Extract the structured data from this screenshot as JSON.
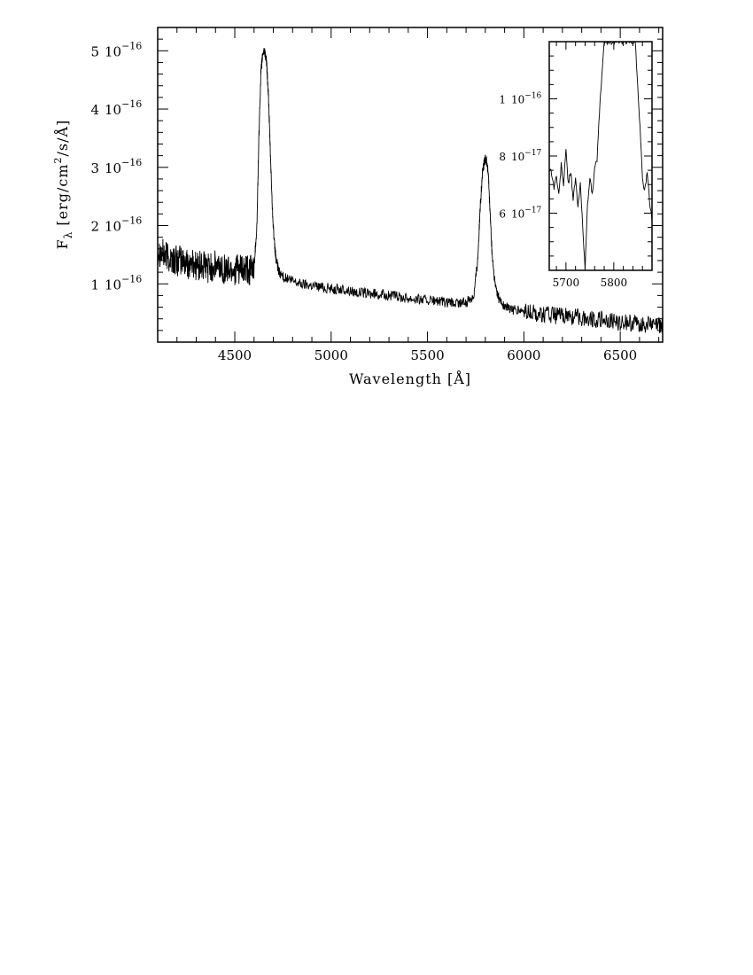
{
  "chart_data": [
    {
      "type": "line",
      "title": "",
      "xlabel": "Wavelength [Å]",
      "ylabel": "Fλ [erg/cm²/s/Å]",
      "ylabel_parts": {
        "symbol": "F",
        "sub": "λ",
        "unit_prefix": "[erg/cm",
        "sup": "2",
        "unit_suffix": "/s/Å]"
      },
      "xlim": [
        4100,
        6720
      ],
      "ylim": [
        0,
        5.4e-16
      ],
      "x_ticks": [
        {
          "value": 4500,
          "label": "4500"
        },
        {
          "value": 5000,
          "label": "5000"
        },
        {
          "value": 5500,
          "label": "5500"
        },
        {
          "value": 6000,
          "label": "6000"
        },
        {
          "value": 6500,
          "label": "6500"
        }
      ],
      "y_ticks": [
        {
          "value": 1e-16,
          "mantissa": "1",
          "base": "10",
          "exponent": "−16"
        },
        {
          "value": 2e-16,
          "mantissa": "2",
          "base": "10",
          "exponent": "−16"
        },
        {
          "value": 3e-16,
          "mantissa": "3",
          "base": "10",
          "exponent": "−16"
        },
        {
          "value": 4e-16,
          "mantissa": "4",
          "base": "10",
          "exponent": "−16"
        },
        {
          "value": 5e-16,
          "mantissa": "5",
          "base": "10",
          "exponent": "−16"
        }
      ],
      "grid": false,
      "legend": "none",
      "line_color": "#000000",
      "series": [
        {
          "x": [
            4100,
            4130,
            4160,
            4190,
            4220,
            4250,
            4280,
            4310,
            4340,
            4370,
            4400,
            4430,
            4460,
            4490,
            4520,
            4550,
            4580,
            4600,
            4615,
            4625,
            4635,
            4645,
            4655,
            4665,
            4675,
            4685,
            4695,
            4705,
            4715,
            4730,
            4760,
            4800,
            4850,
            4900,
            4950,
            5000,
            5050,
            5100,
            5150,
            5200,
            5250,
            5300,
            5350,
            5400,
            5450,
            5500,
            5550,
            5600,
            5650,
            5700,
            5740,
            5760,
            5775,
            5785,
            5795,
            5805,
            5815,
            5825,
            5835,
            5850,
            5870,
            5900,
            5950,
            6000,
            6050,
            6100,
            6150,
            6200,
            6250,
            6300,
            6350,
            6400,
            6450,
            6500,
            6550,
            6600,
            6650,
            6700,
            6720
          ],
          "y": [
            1.6e-16,
            1.5e-16,
            1.45e-16,
            1.4e-16,
            1.4e-16,
            1.35e-16,
            1.35e-16,
            1.3e-16,
            1.3e-16,
            1.28e-16,
            1.3e-16,
            1.28e-16,
            1.25e-16,
            1.25e-16,
            1.25e-16,
            1.22e-16,
            1.22e-16,
            1.3e-16,
            2e-16,
            3.5e-16,
            4.6e-16,
            4.95e-16,
            5e-16,
            4.8e-16,
            4.2e-16,
            3.2e-16,
            2.3e-16,
            1.7e-16,
            1.4e-16,
            1.2e-16,
            1.1e-16,
            1.05e-16,
            1e-16,
            9.8e-17,
            9.5e-17,
            9.2e-17,
            9e-17,
            8.8e-17,
            8.5e-17,
            8.3e-17,
            8.2e-17,
            8e-17,
            7.8e-17,
            7.6e-17,
            7.4e-17,
            7.2e-17,
            7e-17,
            6.7e-17,
            6.6e-17,
            6.8e-17,
            8e-17,
            1.4e-16,
            2.4e-16,
            2.9e-16,
            3.1e-16,
            3.15e-16,
            2.9e-16,
            2.2e-16,
            1.5e-16,
            1e-16,
            7.5e-17,
            6e-17,
            5.5e-17,
            5.2e-17,
            5e-17,
            4.8e-17,
            4.6e-17,
            4.5e-17,
            4.4e-17,
            4.2e-17,
            4e-17,
            3.8e-17,
            3.6e-17,
            3.4e-17,
            3.3e-17,
            3.2e-17,
            3e-17,
            3e-17,
            3e-17
          ]
        }
      ]
    },
    {
      "type": "line",
      "title": "",
      "xlabel": "",
      "ylabel": "",
      "xlim": [
        5665,
        5880
      ],
      "ylim": [
        4e-17,
        1.2e-16
      ],
      "x_ticks": [
        {
          "value": 5700,
          "label": "5700"
        },
        {
          "value": 5800,
          "label": "5800"
        }
      ],
      "y_ticks": [
        {
          "value": 6e-17,
          "mantissa": "6",
          "base": "10",
          "exponent": "−17"
        },
        {
          "value": 8e-17,
          "mantissa": "8",
          "base": "10",
          "exponent": "−17"
        },
        {
          "value": 1e-16,
          "mantissa": "1",
          "base": "10",
          "exponent": "−16"
        }
      ],
      "grid": false,
      "legend": "none",
      "line_color": "#000000",
      "series": [
        {
          "x": [
            5665,
            5670,
            5675,
            5680,
            5685,
            5690,
            5695,
            5700,
            5705,
            5710,
            5715,
            5720,
            5725,
            5730,
            5735,
            5740,
            5745,
            5750,
            5755,
            5760,
            5765,
            5770,
            5775,
            5780,
            5785,
            5790,
            5795,
            5800,
            5805,
            5810,
            5815,
            5820,
            5825,
            5830,
            5835,
            5840,
            5845,
            5850,
            5855,
            5860,
            5865,
            5870,
            5875,
            5880
          ],
          "y": [
            7.6e-17,
            7.4e-17,
            6.9e-17,
            7.3e-17,
            6.6e-17,
            7.7e-17,
            7e-17,
            8.2e-17,
            7e-17,
            7.5e-17,
            6.5e-17,
            7.2e-17,
            6.2e-17,
            7e-17,
            5.6e-17,
            4e-17,
            6.3e-17,
            7.2e-17,
            6.7e-17,
            7.5e-17,
            7.9e-17,
            9.5e-17,
            1.08e-16,
            1.2e-16,
            1.2e-16,
            1.2e-16,
            1.2e-16,
            1.2e-16,
            1.2e-16,
            1.2e-16,
            1.2e-16,
            1.2e-16,
            1.2e-16,
            1.2e-16,
            1.2e-16,
            1.2e-16,
            1.2e-16,
            1.05e-16,
            9e-17,
            7.2e-17,
            6.8e-17,
            7.4e-17,
            6.4e-17,
            5.7e-17
          ]
        }
      ]
    }
  ]
}
